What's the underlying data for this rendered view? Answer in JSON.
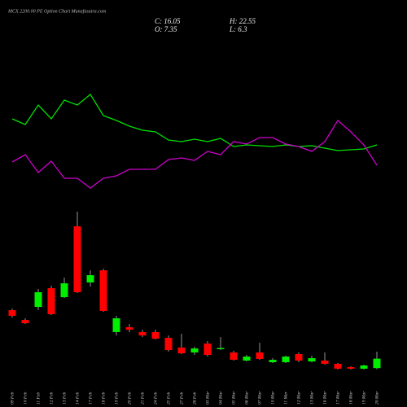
{
  "chart_data": {
    "type": "candlestick",
    "title": "MCX 2200.00 PE Option Chart Munafasutra.com",
    "ohlc_labels": [
      {
        "label": "C:",
        "value": 16.05
      },
      {
        "label": "H:",
        "value": 22.55
      },
      {
        "label": "O:",
        "value": 7.35
      },
      {
        "label": "L:",
        "value": 6.3
      }
    ],
    "categories": [
      "09 Feb",
      "10 Feb",
      "11 Feb",
      "12 Feb",
      "13 Feb",
      "14 Feb",
      "17 Feb",
      "18 Feb",
      "19 Feb",
      "20 Feb",
      "21 Feb",
      "24 Feb",
      "25 Feb",
      "27 Feb",
      "28 Feb",
      "03 Mar",
      "04 Mar",
      "05 Mar",
      "06 Mar",
      "07 Mar",
      "10 Mar",
      "11 Mar",
      "12 Mar",
      "13 Mar",
      "16 Mar",
      "17 Mar",
      "18 Mar",
      "19 Mar",
      "20 Mar"
    ],
    "open": [
      60.8,
      51.8,
      63.8,
      81.1,
      72.8,
      138.2,
      86.4,
      97.6,
      40.6,
      45.1,
      40.6,
      40.6,
      35.3,
      26.3,
      21.8,
      30.0,
      24.8,
      21.8,
      14.3,
      21.8,
      12.8,
      12.8,
      20.3,
      13.5,
      14.3,
      11.3,
      8.3,
      6.8,
      7.35
    ],
    "high": [
      62.3,
      53.3,
      80.4,
      83.4,
      90.9,
      151.7,
      97.6,
      99.1,
      55.6,
      48.1,
      42.8,
      42.8,
      37.5,
      39.1,
      27.0,
      32.3,
      36.0,
      23.3,
      19.5,
      30.8,
      16.5,
      18.8,
      21.8,
      18.8,
      21.8,
      12.0,
      9.0,
      10.5,
      22.55
    ],
    "low": [
      54.1,
      48.1,
      60.8,
      56.3,
      72.1,
      76.6,
      82.6,
      59.3,
      37.5,
      40.6,
      36.0,
      33.8,
      22.5,
      20.3,
      19.5,
      18.0,
      24.0,
      14.3,
      13.5,
      15.0,
      12.0,
      12.0,
      12.8,
      12.8,
      10.5,
      6.0,
      6.0,
      6.0,
      6.3
    ],
    "close": [
      55.6,
      48.8,
      77.4,
      57.1,
      85.6,
      77.4,
      93.1,
      60.1,
      53.3,
      42.8,
      37.5,
      34.5,
      24.0,
      21.0,
      25.5,
      19.5,
      25.9,
      15.0,
      18.0,
      15.8,
      15.0,
      18.0,
      14.3,
      16.5,
      11.3,
      6.8,
      6.8,
      9.8,
      16.05
    ],
    "up_color": "#00ee00",
    "down_color": "#ff0000",
    "ylim": [
      0,
      160
    ],
    "series": [
      {
        "color": "#00e000",
        "axis": "y2",
        "values": [
          154,
          147,
          171,
          154,
          177,
          171,
          184,
          158,
          152,
          145,
          140,
          138,
          128,
          126,
          129,
          126,
          130,
          120,
          122,
          121,
          120,
          122,
          120,
          121,
          118,
          115,
          116,
          117,
          122
        ]
      },
      {
        "color": "#cc00cc",
        "axis": "y2",
        "values": [
          101,
          110,
          88,
          102,
          81,
          81,
          69,
          81,
          84,
          92,
          92,
          92,
          104,
          106,
          103,
          114,
          110,
          126,
          123,
          131,
          131,
          123,
          120,
          114,
          126,
          152,
          138,
          122,
          97
        ]
      }
    ],
    "y2lim": [
      0,
      300
    ]
  }
}
